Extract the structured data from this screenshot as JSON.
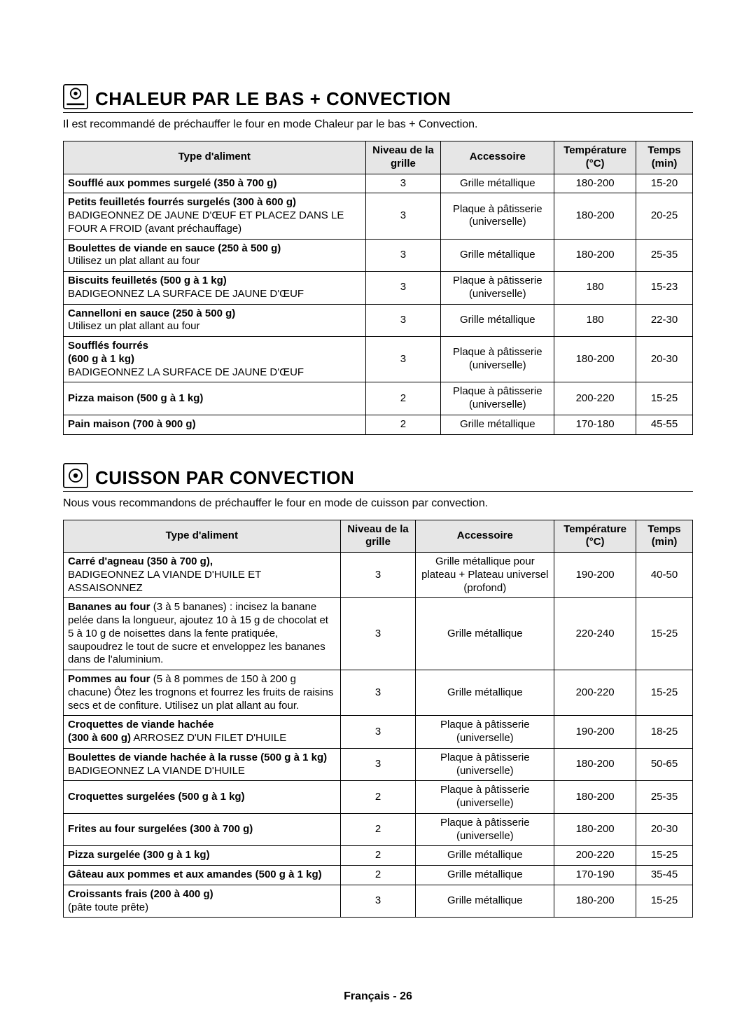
{
  "page": {
    "footer_label": "Français - 26",
    "background_color": "#ffffff",
    "text_color": "#000000",
    "header_bg": "#e6e6e6"
  },
  "sections": [
    {
      "icon": "bottom-heat-convection-icon",
      "title": "CHALEUR PAR LE BAS + CONVECTION",
      "intro": "Il est recommandé de préchauffer le four en mode Chaleur par le bas + Convection.",
      "col_widths": [
        "48%",
        "12%",
        "18%",
        "13%",
        "9%"
      ],
      "headers": [
        "Type d'aliment",
        "Niveau de la grille",
        "Accessoire",
        "Température (°C)",
        "Temps (min)"
      ],
      "rows": [
        {
          "food_b": "Soufflé aux pommes surgelé (350 à 700 g)",
          "food_s": "",
          "level": "3",
          "acc": "Grille métallique",
          "temp": "180-200",
          "time": "15-20"
        },
        {
          "food_b": "Petits feuilletés fourrés surgelés (300 à 600 g)",
          "food_s": "BADIGEONNEZ DE JAUNE D'ŒUF ET PLACEZ DANS LE FOUR A FROID (avant préchauffage)",
          "level": "3",
          "acc": "Plaque à pâtisserie (universelle)",
          "temp": "180-200",
          "time": "20-25"
        },
        {
          "food_b": "Boulettes de viande en sauce (250 à 500 g)",
          "food_s": "Utilisez un plat allant au four",
          "level": "3",
          "acc": "Grille métallique",
          "temp": "180-200",
          "time": "25-35"
        },
        {
          "food_b": "Biscuits feuilletés (500 g à 1 kg)",
          "food_s": "BADIGEONNEZ LA SURFACE DE JAUNE D'ŒUF",
          "level": "3",
          "acc": "Plaque à pâtisserie (universelle)",
          "temp": "180",
          "time": "15-23"
        },
        {
          "food_b": "Cannelloni en sauce (250 à 500 g)",
          "food_s": "Utilisez un plat allant au four",
          "level": "3",
          "acc": "Grille métallique",
          "temp": "180",
          "time": "22-30"
        },
        {
          "food_b": "Soufflés fourrés\n(600 g à 1 kg)",
          "food_s": "BADIGEONNEZ LA SURFACE DE JAUNE D'ŒUF",
          "level": "3",
          "acc": "Plaque à pâtisserie (universelle)",
          "temp": "180-200",
          "time": "20-30"
        },
        {
          "food_b": "Pizza maison (500 g à 1 kg)",
          "food_s": "",
          "level": "2",
          "acc": "Plaque à pâtisserie (universelle)",
          "temp": "200-220",
          "time": "15-25"
        },
        {
          "food_b": "Pain maison (700 à 900 g)",
          "food_s": "",
          "level": "2",
          "acc": "Grille métallique",
          "temp": "170-180",
          "time": "45-55"
        }
      ]
    },
    {
      "icon": "convection-icon",
      "title": "CUISSON PAR CONVECTION",
      "intro": "Nous vous recommandons de préchauffer le four en mode de cuisson par convection.",
      "col_widths": [
        "44%",
        "12%",
        "22%",
        "13%",
        "9%"
      ],
      "headers": [
        "Type d'aliment",
        "Niveau de la grille",
        "Accessoire",
        "Température (°C)",
        "Temps (min)"
      ],
      "rows": [
        {
          "food_b": "Carré d'agneau (350 à 700 g),",
          "food_s": "BADIGEONNEZ LA VIANDE D'HUILE ET ASSAISONNEZ",
          "level": "3",
          "acc": "Grille métallique pour plateau + Plateau universel (profond)",
          "temp": "190-200",
          "time": "40-50"
        },
        {
          "food_b": "Bananes au four",
          "food_s": "(3 à 5 bananes) : incisez la banane pelée dans la longueur, ajoutez 10 à 15 g de chocolat et 5 à 10 g de noisettes dans la fente pratiquée, saupoudrez le tout de sucre et enveloppez les bananes dans de l'aluminium.",
          "inline": true,
          "level": "3",
          "acc": "Grille métallique",
          "temp": "220-240",
          "time": "15-25"
        },
        {
          "food_b": "Pommes au four",
          "food_s": "(5 à 8 pommes de 150 à 200 g chacune) Ôtez les trognons et fourrez les fruits de raisins secs et de confiture. Utilisez un plat allant au four.",
          "inline": true,
          "level": "3",
          "acc": "Grille métallique",
          "temp": "200-220",
          "time": "15-25"
        },
        {
          "food_b": "Croquettes de viande hachée\n(300 à 600 g)",
          "food_s": "ARROSEZ D'UN FILET D'HUILE",
          "inline": true,
          "level": "3",
          "acc": "Plaque à pâtisserie (universelle)",
          "temp": "190-200",
          "time": "18-25"
        },
        {
          "food_b": "Boulettes de viande hachée à la russe (500 g à 1 kg)",
          "food_s": "BADIGEONNEZ LA VIANDE D'HUILE",
          "level": "3",
          "acc": "Plaque à pâtisserie (universelle)",
          "temp": "180-200",
          "time": "50-65"
        },
        {
          "food_b": "Croquettes surgelées (500 g à 1 kg)",
          "food_s": "",
          "level": "2",
          "acc": "Plaque à pâtisserie (universelle)",
          "temp": "180-200",
          "time": "25-35"
        },
        {
          "food_b": "Frites au four surgelées (300 à 700 g)",
          "food_s": "",
          "level": "2",
          "acc": "Plaque à pâtisserie (universelle)",
          "temp": "180-200",
          "time": "20-30"
        },
        {
          "food_b": "Pizza surgelée (300 g à 1 kg)",
          "food_s": "",
          "level": "2",
          "acc": "Grille métallique",
          "temp": "200-220",
          "time": "15-25"
        },
        {
          "food_b": "Gâteau aux pommes et aux amandes (500 g à 1 kg)",
          "food_s": "",
          "level": "2",
          "acc": "Grille métallique",
          "temp": "170-190",
          "time": "35-45"
        },
        {
          "food_b": "Croissants frais (200 à 400 g)",
          "food_s": "(pâte toute prête)",
          "level": "3",
          "acc": "Grille métallique",
          "temp": "180-200",
          "time": "15-25"
        }
      ]
    }
  ]
}
